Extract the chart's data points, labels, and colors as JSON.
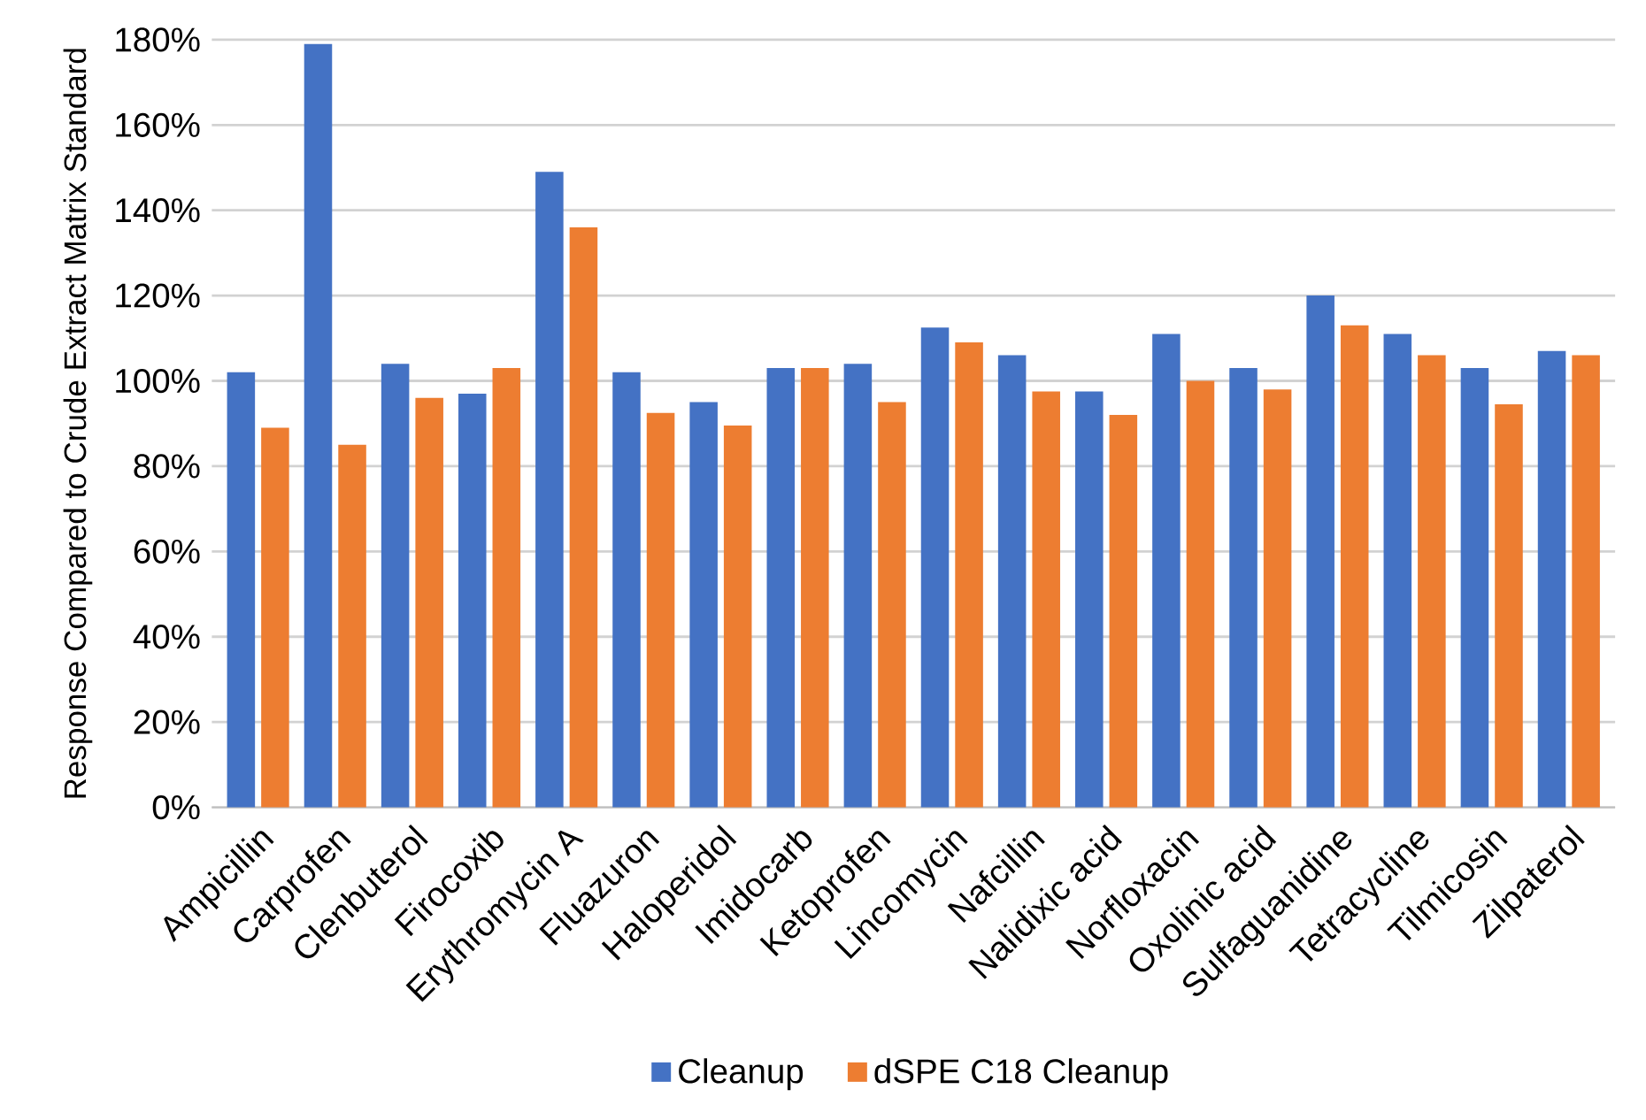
{
  "chart_data": {
    "type": "bar",
    "ylabel": "Response Compared to Crude Extract Matrix Standard",
    "categories": [
      "Ampicillin",
      "Carprofen",
      "Clenbuterol",
      "Firocoxib",
      "Erythromycin A",
      "Fluazuron",
      "Haloperidol",
      "Imidocarb",
      "Ketoprofen",
      "Lincomycin",
      "Nafcillin",
      "Nalidixic acid",
      "Norfloxacin",
      "Oxolinic acid",
      "Sulfaguanidine",
      "Tetracycline",
      "Tilmicosin",
      "Zilpaterol"
    ],
    "series": [
      {
        "name": "Cleanup",
        "color": "#4472c4",
        "values": [
          102,
          179,
          104,
          97,
          149,
          102,
          95,
          103,
          104,
          112.5,
          106,
          97.5,
          111,
          103,
          120,
          111,
          103,
          107
        ]
      },
      {
        "name": "dSPE C18 Cleanup",
        "color": "#ed7d31",
        "values": [
          89,
          85,
          96,
          103,
          136,
          92.5,
          89.5,
          103,
          95,
          109,
          97.5,
          92,
          100,
          98,
          113,
          106,
          94.5,
          106
        ]
      }
    ],
    "ylim": [
      0,
      180
    ],
    "yticks": [
      {
        "value": 0,
        "label": "0%"
      },
      {
        "value": 20,
        "label": "20%"
      },
      {
        "value": 40,
        "label": "40%"
      },
      {
        "value": 60,
        "label": "60%"
      },
      {
        "value": 80,
        "label": "80%"
      },
      {
        "value": 100,
        "label": "100%"
      },
      {
        "value": 120,
        "label": "120%"
      },
      {
        "value": 140,
        "label": "140%"
      },
      {
        "value": 160,
        "label": "160%"
      },
      {
        "value": 180,
        "label": "180%"
      }
    ],
    "grid": "y",
    "legend": "bottom"
  }
}
